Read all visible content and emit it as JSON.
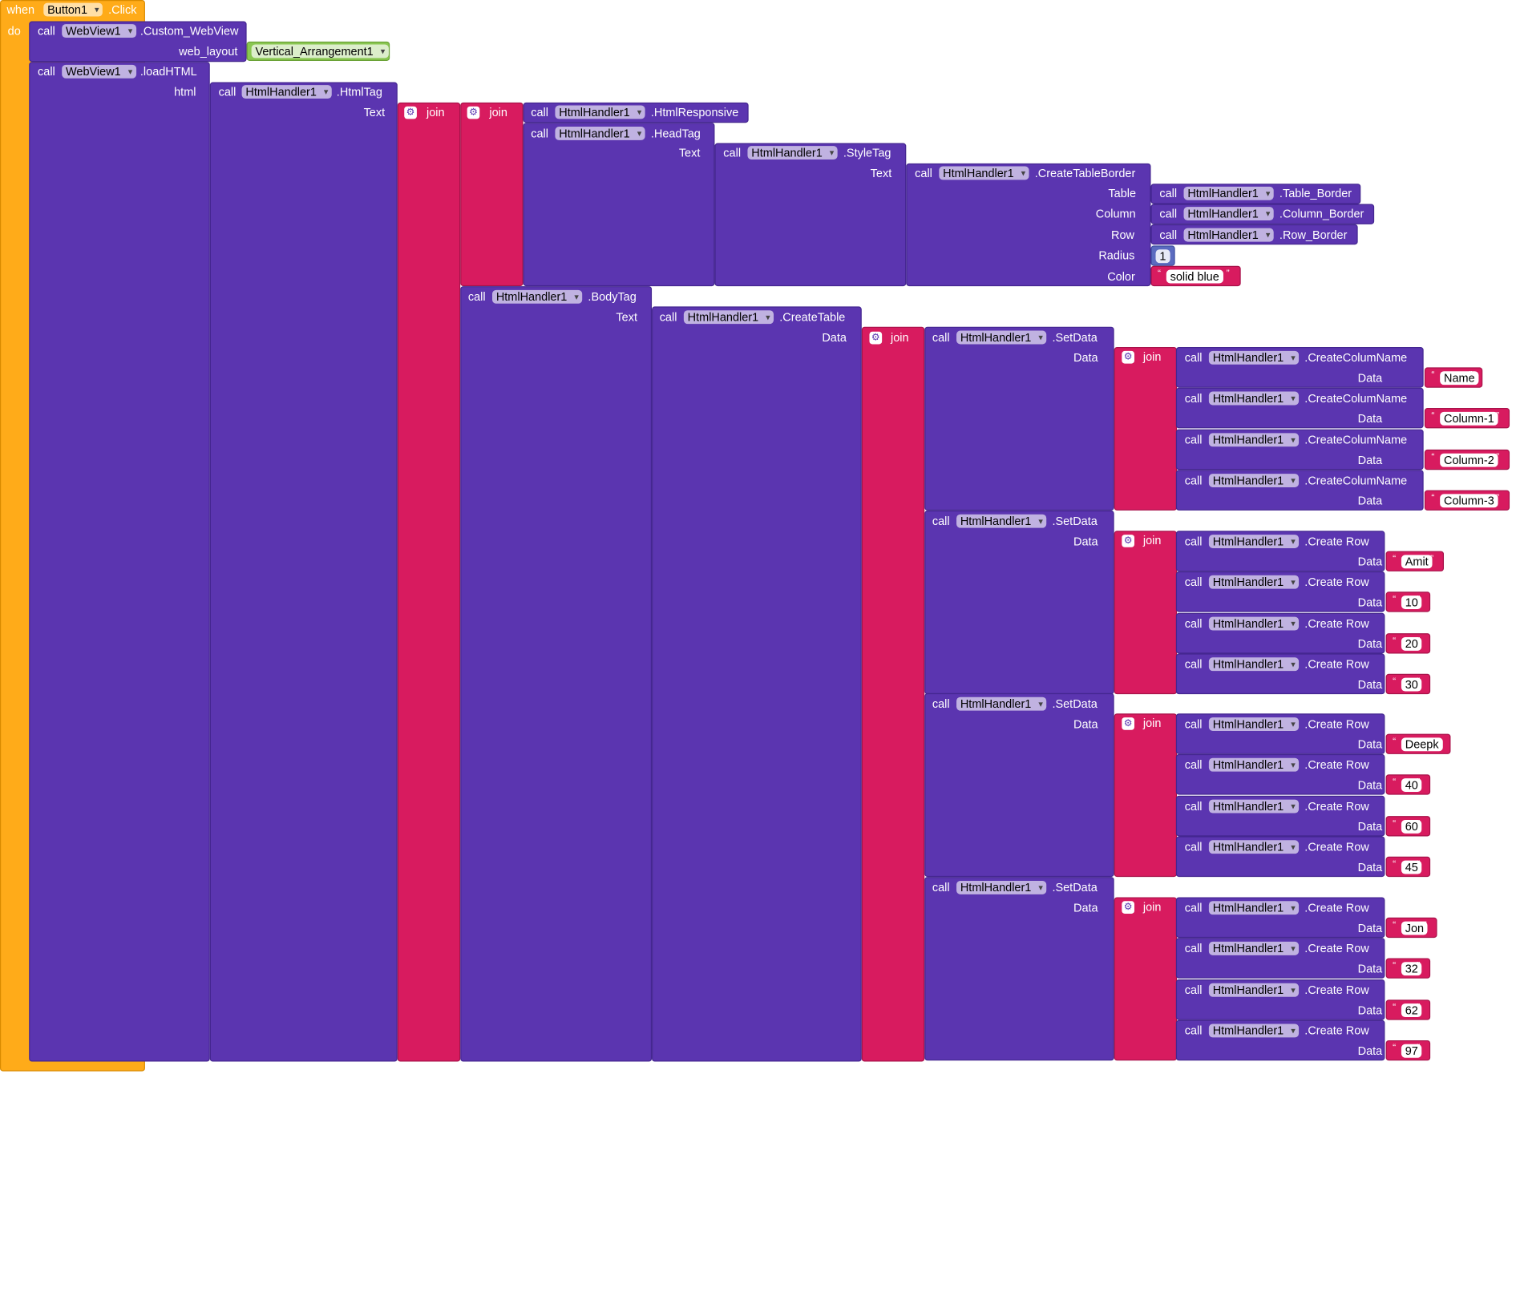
{
  "event": {
    "when": "when",
    "do": "do",
    "component": "Button1",
    "name": ".Click"
  },
  "labels": {
    "call": "call",
    "join": "join",
    "web_layout": "web_layout",
    "html": "html",
    "text": "Text",
    "table": "Table",
    "column": "Column",
    "row": "Row",
    "radius": "Radius",
    "color": "Color",
    "data": "Data",
    "quote": "“",
    "quote_close": "”"
  },
  "webview": {
    "component": "WebView1",
    "custom": ".Custom_WebView",
    "load": ".loadHTML",
    "layout": "Vertical_Arrangement1"
  },
  "handler": {
    "component": "HtmlHandler1",
    "html_tag": ".HtmlTag",
    "responsive": ".HtmlResponsive",
    "head_tag": ".HeadTag",
    "style_tag": ".StyleTag",
    "create_table_border": ".CreateTableBorder",
    "table_border": ".Table_Border",
    "column_border": ".Column_Border",
    "row_border": ".Row_Border",
    "body_tag": ".BodyTag",
    "create_table": ".CreateTable",
    "set_data": ".SetData",
    "create_column": ".CreateColumName",
    "create_row": ".Create Row"
  },
  "border": {
    "radius": "1",
    "color": "solid blue"
  },
  "columns": [
    "Name",
    "Column-1",
    "Column-2",
    "Column-3"
  ],
  "rows": [
    [
      "Amit",
      "10",
      "20",
      "30"
    ],
    [
      "Deepk",
      "40",
      "60",
      "45"
    ],
    [
      "Jon",
      "32",
      "62",
      "97"
    ]
  ]
}
